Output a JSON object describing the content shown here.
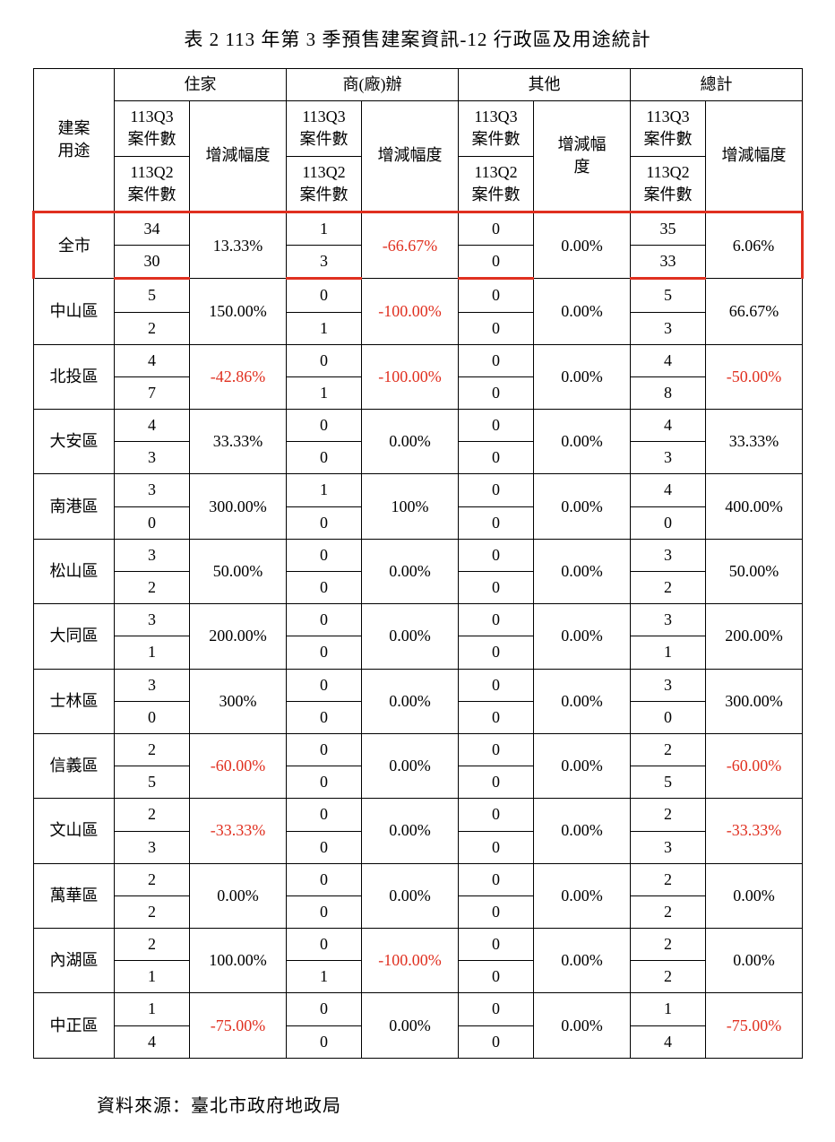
{
  "title": "表 2 113 年第 3 季預售建案資訊-12 行政區及用途統計",
  "source": "資料來源：臺北市政府地政局",
  "header": {
    "rowLabel": "建案\n用途",
    "groups": [
      "住家",
      "商(廠)辦",
      "其他",
      "總計"
    ],
    "q3": "113Q3\n案件數",
    "q2": "113Q2\n案件數",
    "pct": "增減幅度",
    "pctNarrow": "增減幅\n度"
  },
  "colors": {
    "border": "#000000",
    "highlight": "#e03020",
    "negative": "#e03020",
    "background": "#ffffff"
  },
  "rows": [
    {
      "label": "全市",
      "highlight": true,
      "res": {
        "q3": "34",
        "q2": "30",
        "pct": "13.33%",
        "neg": false
      },
      "com": {
        "q3": "1",
        "q2": "3",
        "pct": "-66.67%",
        "neg": true
      },
      "oth": {
        "q3": "0",
        "q2": "0",
        "pct": "0.00%",
        "neg": false
      },
      "tot": {
        "q3": "35",
        "q2": "33",
        "pct": "6.06%",
        "neg": false
      }
    },
    {
      "label": "中山區",
      "res": {
        "q3": "5",
        "q2": "2",
        "pct": "150.00%",
        "neg": false
      },
      "com": {
        "q3": "0",
        "q2": "1",
        "pct": "-100.00%",
        "neg": true
      },
      "oth": {
        "q3": "0",
        "q2": "0",
        "pct": "0.00%",
        "neg": false
      },
      "tot": {
        "q3": "5",
        "q2": "3",
        "pct": "66.67%",
        "neg": false
      }
    },
    {
      "label": "北投區",
      "res": {
        "q3": "4",
        "q2": "7",
        "pct": "-42.86%",
        "neg": true
      },
      "com": {
        "q3": "0",
        "q2": "1",
        "pct": "-100.00%",
        "neg": true
      },
      "oth": {
        "q3": "0",
        "q2": "0",
        "pct": "0.00%",
        "neg": false
      },
      "tot": {
        "q3": "4",
        "q2": "8",
        "pct": "-50.00%",
        "neg": true
      }
    },
    {
      "label": "大安區",
      "res": {
        "q3": "4",
        "q2": "3",
        "pct": "33.33%",
        "neg": false
      },
      "com": {
        "q3": "0",
        "q2": "0",
        "pct": "0.00%",
        "neg": false
      },
      "oth": {
        "q3": "0",
        "q2": "0",
        "pct": "0.00%",
        "neg": false
      },
      "tot": {
        "q3": "4",
        "q2": "3",
        "pct": "33.33%",
        "neg": false
      }
    },
    {
      "label": "南港區",
      "res": {
        "q3": "3",
        "q2": "0",
        "pct": "300.00%",
        "neg": false
      },
      "com": {
        "q3": "1",
        "q2": "0",
        "pct": "100%",
        "neg": false
      },
      "oth": {
        "q3": "0",
        "q2": "0",
        "pct": "0.00%",
        "neg": false
      },
      "tot": {
        "q3": "4",
        "q2": "0",
        "pct": "400.00%",
        "neg": false
      }
    },
    {
      "label": "松山區",
      "res": {
        "q3": "3",
        "q2": "2",
        "pct": "50.00%",
        "neg": false
      },
      "com": {
        "q3": "0",
        "q2": "0",
        "pct": "0.00%",
        "neg": false
      },
      "oth": {
        "q3": "0",
        "q2": "0",
        "pct": "0.00%",
        "neg": false
      },
      "tot": {
        "q3": "3",
        "q2": "2",
        "pct": "50.00%",
        "neg": false
      }
    },
    {
      "label": "大同區",
      "res": {
        "q3": "3",
        "q2": "1",
        "pct": "200.00%",
        "neg": false
      },
      "com": {
        "q3": "0",
        "q2": "0",
        "pct": "0.00%",
        "neg": false
      },
      "oth": {
        "q3": "0",
        "q2": "0",
        "pct": "0.00%",
        "neg": false
      },
      "tot": {
        "q3": "3",
        "q2": "1",
        "pct": "200.00%",
        "neg": false
      }
    },
    {
      "label": "士林區",
      "res": {
        "q3": "3",
        "q2": "0",
        "pct": "300%",
        "neg": false
      },
      "com": {
        "q3": "0",
        "q2": "0",
        "pct": "0.00%",
        "neg": false
      },
      "oth": {
        "q3": "0",
        "q2": "0",
        "pct": "0.00%",
        "neg": false
      },
      "tot": {
        "q3": "3",
        "q2": "0",
        "pct": "300.00%",
        "neg": false
      }
    },
    {
      "label": "信義區",
      "res": {
        "q3": "2",
        "q2": "5",
        "pct": "-60.00%",
        "neg": true
      },
      "com": {
        "q3": "0",
        "q2": "0",
        "pct": "0.00%",
        "neg": false
      },
      "oth": {
        "q3": "0",
        "q2": "0",
        "pct": "0.00%",
        "neg": false
      },
      "tot": {
        "q3": "2",
        "q2": "5",
        "pct": "-60.00%",
        "neg": true
      }
    },
    {
      "label": "文山區",
      "res": {
        "q3": "2",
        "q2": "3",
        "pct": "-33.33%",
        "neg": true
      },
      "com": {
        "q3": "0",
        "q2": "0",
        "pct": "0.00%",
        "neg": false
      },
      "oth": {
        "q3": "0",
        "q2": "0",
        "pct": "0.00%",
        "neg": false
      },
      "tot": {
        "q3": "2",
        "q2": "3",
        "pct": "-33.33%",
        "neg": true
      }
    },
    {
      "label": "萬華區",
      "res": {
        "q3": "2",
        "q2": "2",
        "pct": "0.00%",
        "neg": false
      },
      "com": {
        "q3": "0",
        "q2": "0",
        "pct": "0.00%",
        "neg": false
      },
      "oth": {
        "q3": "0",
        "q2": "0",
        "pct": "0.00%",
        "neg": false
      },
      "tot": {
        "q3": "2",
        "q2": "2",
        "pct": "0.00%",
        "neg": false
      }
    },
    {
      "label": "內湖區",
      "res": {
        "q3": "2",
        "q2": "1",
        "pct": "100.00%",
        "neg": false
      },
      "com": {
        "q3": "0",
        "q2": "1",
        "pct": "-100.00%",
        "neg": true
      },
      "oth": {
        "q3": "0",
        "q2": "0",
        "pct": "0.00%",
        "neg": false
      },
      "tot": {
        "q3": "2",
        "q2": "2",
        "pct": "0.00%",
        "neg": false
      }
    },
    {
      "label": "中正區",
      "res": {
        "q3": "1",
        "q2": "4",
        "pct": "-75.00%",
        "neg": true
      },
      "com": {
        "q3": "0",
        "q2": "0",
        "pct": "0.00%",
        "neg": false
      },
      "oth": {
        "q3": "0",
        "q2": "0",
        "pct": "0.00%",
        "neg": false
      },
      "tot": {
        "q3": "1",
        "q2": "4",
        "pct": "-75.00%",
        "neg": true
      }
    }
  ]
}
